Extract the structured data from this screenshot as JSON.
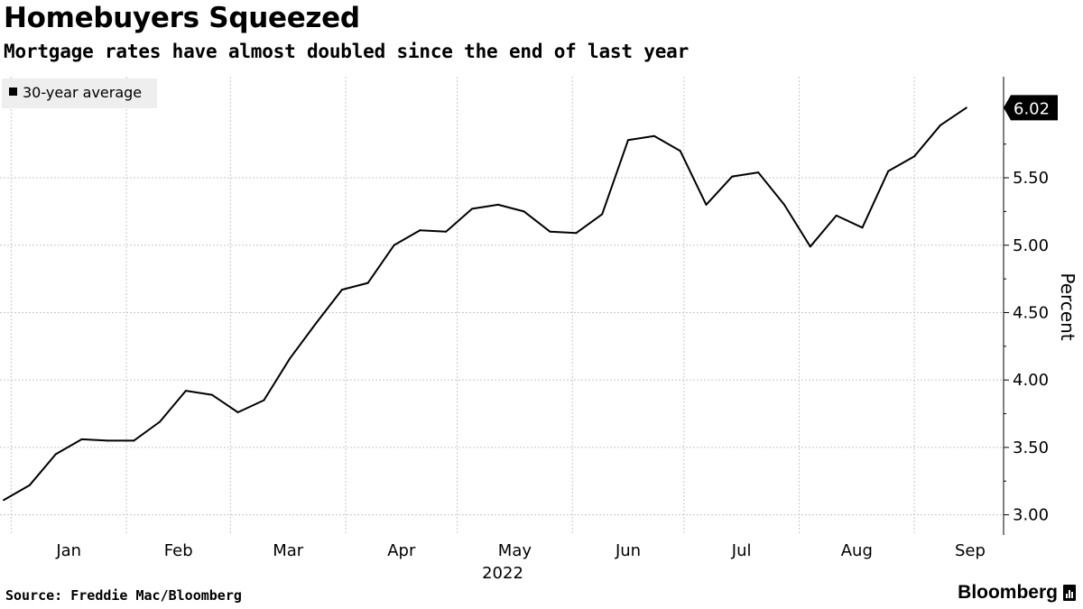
{
  "chart_data": {
    "type": "line",
    "title": "Homebuyers Squeezed",
    "subtitle": "Mortgage rates have almost doubled since the end of last year",
    "ylabel": "Percent",
    "xlabel": "2022",
    "ylim": [
      2.85,
      6.25
    ],
    "yticks": [
      "3.00",
      "3.50",
      "4.00",
      "4.50",
      "5.00",
      "5.50"
    ],
    "ytick_values": [
      3.0,
      3.5,
      4.0,
      4.5,
      5.0,
      5.5
    ],
    "xticks": [
      "Jan",
      "Feb",
      "Mar",
      "Apr",
      "May",
      "Jun",
      "Jul",
      "Aug",
      "Sep"
    ],
    "x_range": [
      "2021-12-29",
      "2022-09-25"
    ],
    "grid": true,
    "legend": "top-left",
    "last_value_label": "6.02",
    "series": [
      {
        "name": "30-year average",
        "color": "#000000",
        "x": [
          "2021-12-30",
          "2022-01-06",
          "2022-01-13",
          "2022-01-20",
          "2022-01-27",
          "2022-02-03",
          "2022-02-10",
          "2022-02-17",
          "2022-02-24",
          "2022-03-03",
          "2022-03-10",
          "2022-03-17",
          "2022-03-24",
          "2022-03-31",
          "2022-04-07",
          "2022-04-14",
          "2022-04-21",
          "2022-04-28",
          "2022-05-05",
          "2022-05-12",
          "2022-05-19",
          "2022-05-26",
          "2022-06-02",
          "2022-06-09",
          "2022-06-16",
          "2022-06-23",
          "2022-06-30",
          "2022-07-07",
          "2022-07-14",
          "2022-07-21",
          "2022-07-28",
          "2022-08-04",
          "2022-08-11",
          "2022-08-18",
          "2022-08-25",
          "2022-09-01",
          "2022-09-08",
          "2022-09-15"
        ],
        "values": [
          3.11,
          3.22,
          3.45,
          3.56,
          3.55,
          3.55,
          3.69,
          3.92,
          3.89,
          3.76,
          3.85,
          4.16,
          4.42,
          4.67,
          4.72,
          5.0,
          5.11,
          5.1,
          5.27,
          5.3,
          5.25,
          5.1,
          5.09,
          5.23,
          5.78,
          5.81,
          5.7,
          5.3,
          5.51,
          5.54,
          5.3,
          4.99,
          5.22,
          5.13,
          5.55,
          5.66,
          5.89,
          6.02
        ]
      }
    ]
  },
  "footer": {
    "source": "Source: Freddie Mac/Bloomberg",
    "brand": "Bloomberg"
  }
}
